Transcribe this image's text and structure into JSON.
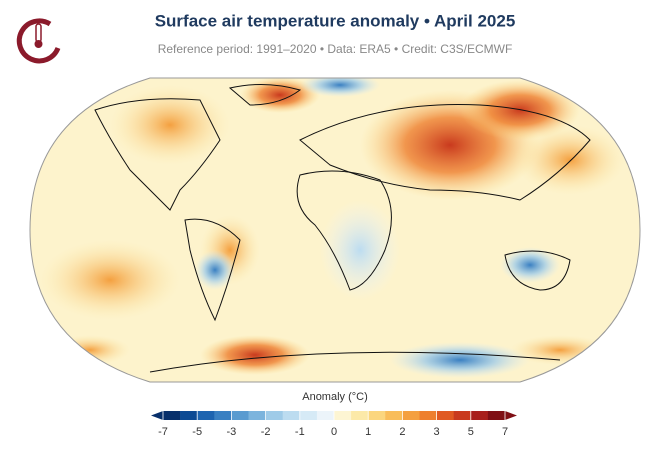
{
  "header": {
    "title": "Surface air temperature anomaly • April 2025",
    "subtitle": "Reference period: 1991–2020 • Data: ERA5 • Credit: C3S/ECMWF"
  },
  "colorbar": {
    "label": "Anomaly (°C)",
    "ticks": [
      -7,
      -5,
      -3,
      -2,
      -1,
      0,
      1,
      2,
      3,
      5,
      7
    ],
    "colors": [
      "#08306b",
      "#0c4a94",
      "#1e64b0",
      "#3a80c2",
      "#5a9bd0",
      "#7cb4dd",
      "#9fcbe8",
      "#bcdcf0",
      "#d6eaf6",
      "#ecf4fa",
      "#fdf5d3",
      "#fce9a8",
      "#fbd67e",
      "#f9bd5a",
      "#f4a040",
      "#ee7f2e",
      "#e05a22",
      "#c93a1e",
      "#a81f1c",
      "#7f0f15"
    ]
  }
}
